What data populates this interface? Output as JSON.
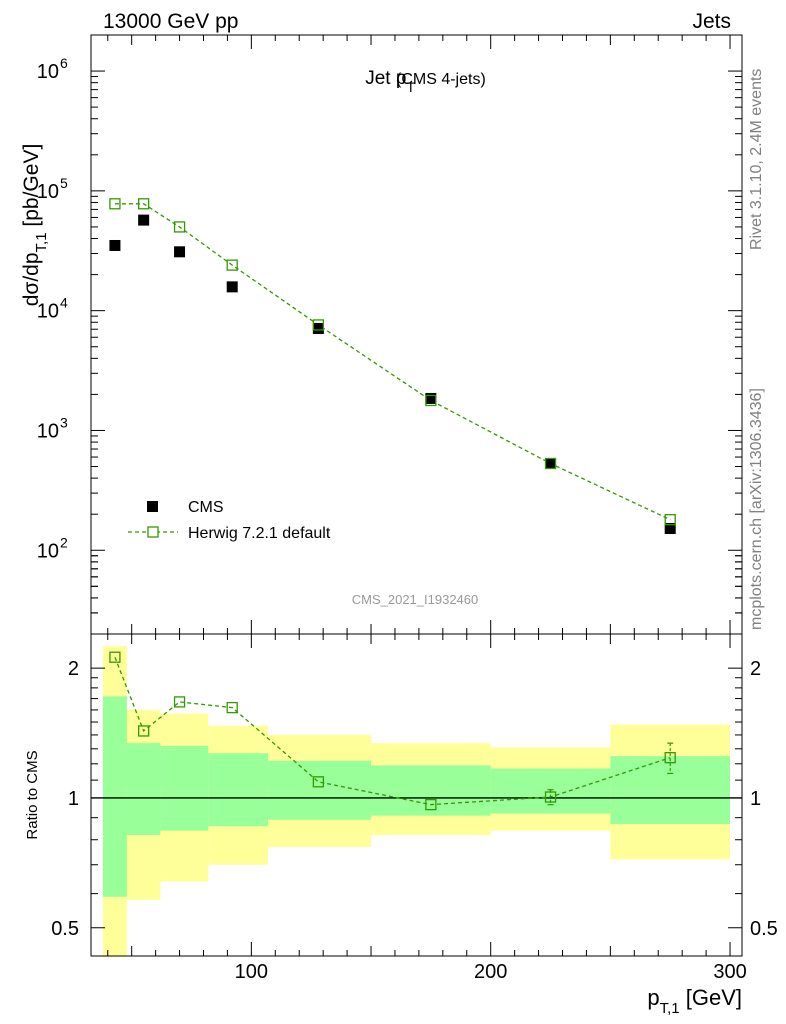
{
  "header": {
    "left": "13000 GeV pp",
    "right": "Jets"
  },
  "side_labels": {
    "rivet": "Rivet 3.1.10,  2.4M events",
    "mcplots": "mcplots.cern.ch [arXiv:1306.3436]"
  },
  "chart_data": [
    {
      "type": "scatter",
      "panel": "main",
      "title_main": "Jet p",
      "title_sub": "T",
      "title_extra": "(CMS 4-jets)",
      "watermark": "CMS_2021_I1932460",
      "ylabel": {
        "main": "dσ/dp",
        "sub": "T,1",
        "unit": "[pb/GeV]"
      },
      "yscale": "log",
      "ylim": [
        20,
        2000000
      ],
      "xlim": [
        33,
        305
      ],
      "yticks": [
        {
          "value": 100,
          "base": "10",
          "exp": "2"
        },
        {
          "value": 1000,
          "base": "10",
          "exp": "3"
        },
        {
          "value": 10000,
          "base": "10",
          "exp": "4"
        },
        {
          "value": 100000,
          "base": "10",
          "exp": "5"
        },
        {
          "value": 1000000,
          "base": "10",
          "exp": "6"
        }
      ],
      "legend": {
        "position": "lower-left",
        "entries": [
          "CMS",
          "Herwig 7.2.1 default"
        ]
      },
      "series": [
        {
          "name": "CMS",
          "style": "filled-square",
          "color": "#000000",
          "x": [
            43,
            55,
            70,
            92,
            128,
            175,
            225,
            275
          ],
          "y": [
            35000,
            57000,
            31000,
            15800,
            7100,
            1850,
            530,
            152
          ]
        },
        {
          "name": "Herwig 7.2.1 default",
          "style": "open-square-dashed",
          "color": "#339900",
          "x": [
            43,
            55,
            70,
            92,
            128,
            175,
            225,
            275
          ],
          "y": [
            78000,
            78000,
            50000,
            24000,
            7600,
            1780,
            530,
            180
          ]
        }
      ]
    },
    {
      "type": "line",
      "panel": "ratio",
      "ylabel": "Ratio to CMS",
      "xlabel": {
        "main": "p",
        "sub": "T,1",
        "unit": "[GeV]"
      },
      "yscale": "log",
      "ylim": [
        0.43,
        2.4
      ],
      "xlim": [
        33,
        305
      ],
      "xticks": [
        100,
        200,
        300
      ],
      "yticks": [
        0.5,
        1,
        2
      ],
      "reference_line": 1,
      "bins": [
        {
          "lo": 38,
          "hi": 48,
          "stat_lo": 0.59,
          "stat_hi": 1.72,
          "tot_lo": 0.25,
          "tot_hi": 2.25
        },
        {
          "lo": 48,
          "hi": 62,
          "stat_lo": 0.82,
          "stat_hi": 1.34,
          "tot_lo": 0.58,
          "tot_hi": 1.6
        },
        {
          "lo": 62,
          "hi": 82,
          "stat_lo": 0.84,
          "stat_hi": 1.32,
          "tot_lo": 0.64,
          "tot_hi": 1.57
        },
        {
          "lo": 82,
          "hi": 107,
          "stat_lo": 0.86,
          "stat_hi": 1.27,
          "tot_lo": 0.7,
          "tot_hi": 1.47
        },
        {
          "lo": 107,
          "hi": 150,
          "stat_lo": 0.89,
          "stat_hi": 1.22,
          "tot_lo": 0.77,
          "tot_hi": 1.4
        },
        {
          "lo": 150,
          "hi": 200,
          "stat_lo": 0.91,
          "stat_hi": 1.19,
          "tot_lo": 0.82,
          "tot_hi": 1.34
        },
        {
          "lo": 200,
          "hi": 250,
          "stat_lo": 0.92,
          "stat_hi": 1.17,
          "tot_lo": 0.84,
          "tot_hi": 1.31
        },
        {
          "lo": 250,
          "hi": 300,
          "stat_lo": 0.87,
          "stat_hi": 1.25,
          "tot_lo": 0.72,
          "tot_hi": 1.48
        }
      ],
      "series": [
        {
          "name": "Herwig 7.2.1 default",
          "color": "#339900",
          "x": [
            43,
            55,
            70,
            92,
            128,
            175,
            225,
            275
          ],
          "y": [
            2.12,
            1.43,
            1.67,
            1.62,
            1.09,
            0.965,
            1.005,
            1.24
          ],
          "err": [
            0.02,
            0.02,
            0.02,
            0.02,
            0.015,
            0.015,
            0.04,
            0.1
          ]
        }
      ],
      "band_colors": {
        "stat": "#99ff99",
        "total": "#ffff99"
      }
    }
  ]
}
